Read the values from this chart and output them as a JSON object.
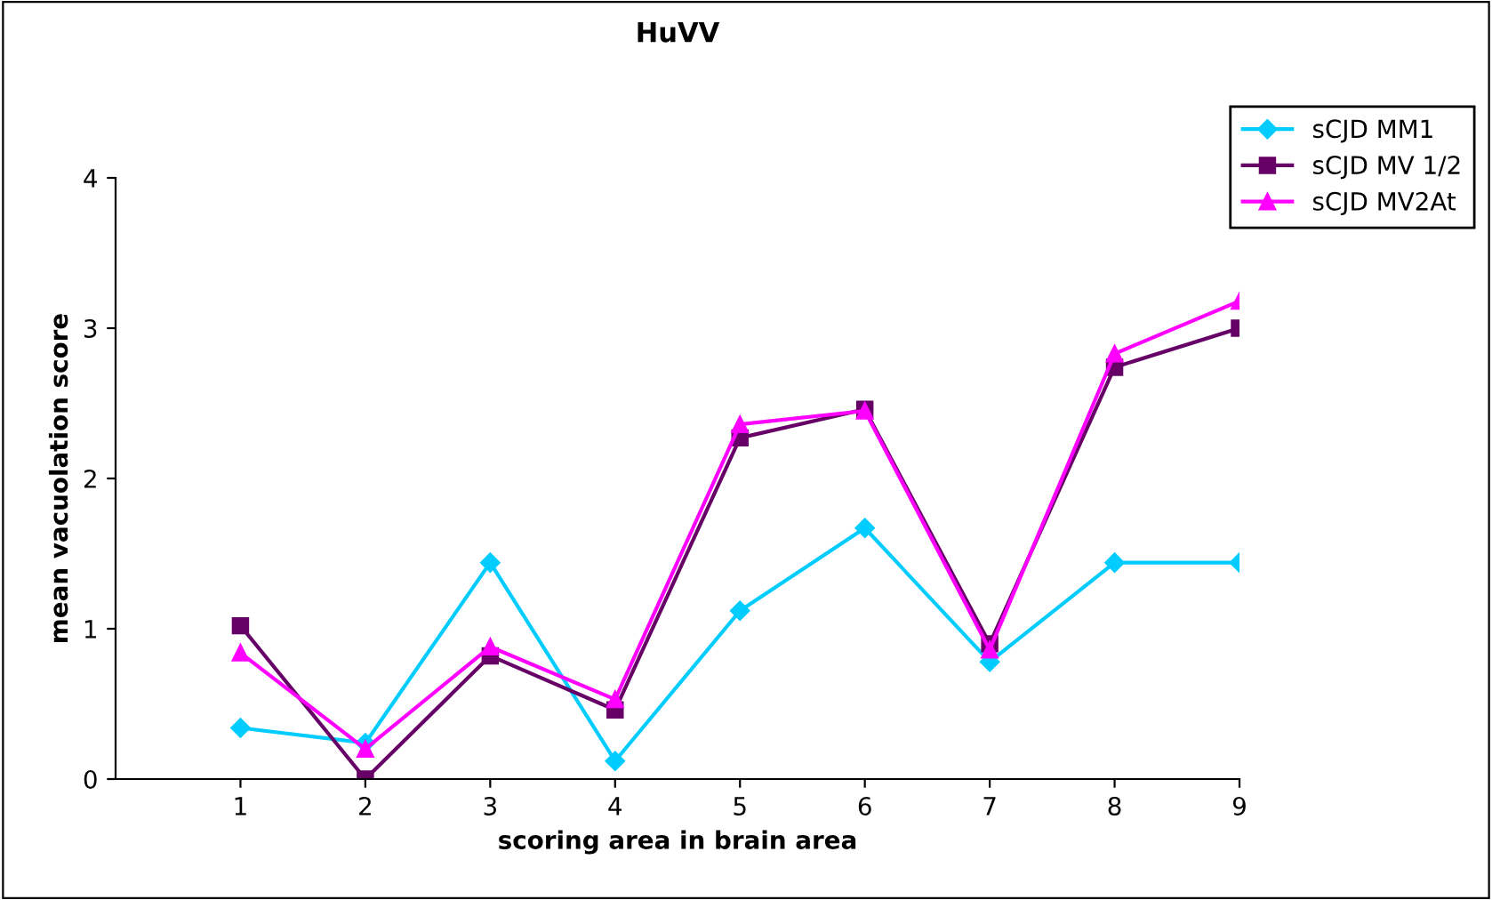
{
  "chart_data": {
    "type": "line",
    "title": "HuVV",
    "xlabel": "scoring area in brain area",
    "ylabel": "mean vacuolation score",
    "x": [
      1,
      2,
      3,
      4,
      5,
      6,
      7,
      8,
      9
    ],
    "series": [
      {
        "name": "sCJD MM1",
        "color": "#00ccff",
        "marker": "diamond",
        "values": [
          0.34,
          0.24,
          1.44,
          0.12,
          1.12,
          1.67,
          0.78,
          1.44,
          1.44
        ]
      },
      {
        "name": "sCJD MV 1/2",
        "color": "#660066",
        "marker": "square",
        "values": [
          1.02,
          0.0,
          0.82,
          0.46,
          2.27,
          2.46,
          0.9,
          2.74,
          3.0
        ]
      },
      {
        "name": "sCJD MV2At",
        "color": "#ff00ff",
        "marker": "triangle",
        "values": [
          0.84,
          0.2,
          0.88,
          0.53,
          2.36,
          2.45,
          0.86,
          2.83,
          3.18
        ]
      }
    ],
    "xlim": [
      0,
      9
    ],
    "xticks": [
      1,
      2,
      3,
      4,
      5,
      6,
      7,
      8,
      9
    ],
    "ylim": [
      0,
      4
    ],
    "yticks": [
      0,
      1,
      2,
      3,
      4
    ],
    "grid": false,
    "legend": "top right",
    "line_style": "solid"
  }
}
